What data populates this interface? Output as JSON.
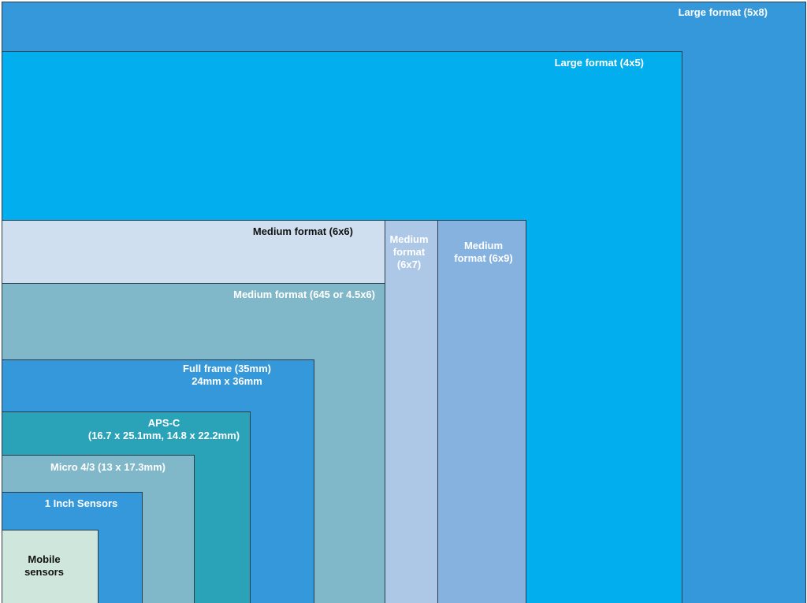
{
  "colors": {
    "large_5x8": "#3498db",
    "large_4x5": "#03aeef",
    "medium_6x6": "#cfdff0",
    "medium_6x7": "#acc8e6",
    "medium_6x9": "#86b2e0",
    "medium_645": "#80b8ca",
    "full_frame": "#3498db",
    "aps_c": "#2aa2b8",
    "micro_43": "#80b8ca",
    "one_inch": "#3498db",
    "mobile": "#cfe6dc",
    "border": "#2a3d4d",
    "text_light": "#ffffff",
    "text_dark": "#111111"
  },
  "sensors": {
    "large_5x8": "Large format (5x8)",
    "large_4x5": "Large format (4x5)",
    "medium_6x6": "Medium format (6x6)",
    "medium_6x7": "Medium\nformat\n(6x7)",
    "medium_6x9": "Medium\nformat (6x9)",
    "medium_645": "Medium format (645 or 4.5x6)",
    "full_frame": "Full frame (35mm)\n24mm x 36mm",
    "aps_c": "APS-C\n(16.7 x 25.1mm, 14.8 x 22.2mm)",
    "micro_43": "Micro 4/3 (13 x 17.3mm)",
    "one_inch": "1 Inch Sensors",
    "mobile": "Mobile\nsensors"
  }
}
